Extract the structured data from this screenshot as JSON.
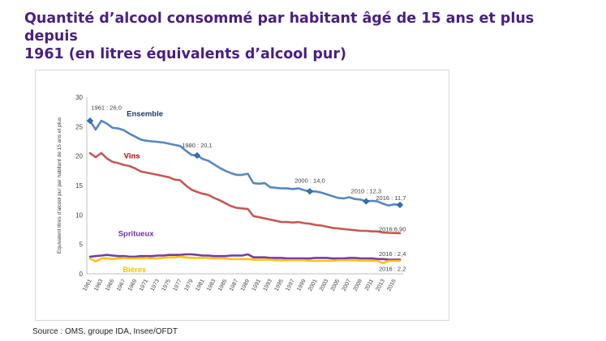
{
  "header": {
    "title_line1": "Quantité d’alcool consommé par habitant âgé de 15 ans et plus depuis",
    "title_line2": "1961 (en litres équivalents d’alcool pur)"
  },
  "footer": {
    "source": "Source : OMS, groupe IDA, Insee/OFDT"
  },
  "chart_data": {
    "type": "line",
    "title": "Quantité d’alcool consommé par habitant âgé de 15 ans et plus depuis 1961 (en litres équivalents d’alcool pur)",
    "ylabel": "Equivalent litres d'alcool pur par habitant de 15 ans et plus",
    "xlabel": "",
    "ylim": [
      0,
      30
    ],
    "yticks": [
      0,
      5,
      10,
      15,
      20,
      25,
      30
    ],
    "x": [
      1961,
      1962,
      1963,
      1964,
      1965,
      1966,
      1967,
      1968,
      1969,
      1970,
      1971,
      1972,
      1973,
      1974,
      1975,
      1976,
      1977,
      1978,
      1979,
      1980,
      1981,
      1982,
      1983,
      1984,
      1985,
      1986,
      1987,
      1988,
      1989,
      1990,
      1991,
      1992,
      1993,
      1994,
      1995,
      1996,
      1997,
      1998,
      1999,
      2000,
      2001,
      2002,
      2003,
      2004,
      2005,
      2006,
      2007,
      2008,
      2009,
      2010,
      2011,
      2012,
      2013,
      2014,
      2015,
      2016
    ],
    "xtick_labels": [
      "1961",
      "1963",
      "1965",
      "1967",
      "1969",
      "1971",
      "1973",
      "1975",
      "1977",
      "1979",
      "1981",
      "1983",
      "1985",
      "1987",
      "1989",
      "1991",
      "1993",
      "1995",
      "1997",
      "1999",
      "2001",
      "2003",
      "2005",
      "2007",
      "2009",
      "2011",
      "2013",
      "2015"
    ],
    "grid": false,
    "series": [
      {
        "name": "Ensemble",
        "color": "#4f81bd",
        "values": [
          26.0,
          24.5,
          26.0,
          25.5,
          24.8,
          24.7,
          24.4,
          23.8,
          23.3,
          22.8,
          22.6,
          22.5,
          22.4,
          22.3,
          22.1,
          21.9,
          21.7,
          20.9,
          20.2,
          20.1,
          19.5,
          19.2,
          18.6,
          18.0,
          17.5,
          17.1,
          16.8,
          16.8,
          17.0,
          15.4,
          15.3,
          15.4,
          14.7,
          14.6,
          14.5,
          14.5,
          14.4,
          14.5,
          14.2,
          14.0,
          14.0,
          13.8,
          13.5,
          13.2,
          12.9,
          12.8,
          13.0,
          12.7,
          12.6,
          12.3,
          12.4,
          12.3,
          11.9,
          11.6,
          11.8,
          11.7
        ]
      },
      {
        "name": "Vins",
        "color": "#c0504d",
        "values": [
          20.5,
          19.8,
          20.5,
          19.6,
          19.0,
          18.8,
          18.5,
          18.3,
          17.9,
          17.4,
          17.2,
          17.0,
          16.8,
          16.6,
          16.4,
          16.0,
          15.9,
          15.0,
          14.3,
          13.9,
          13.6,
          13.4,
          12.9,
          12.5,
          12.0,
          11.5,
          11.2,
          11.1,
          11.0,
          9.8,
          9.6,
          9.4,
          9.2,
          9.0,
          8.8,
          8.8,
          8.7,
          8.8,
          8.6,
          8.5,
          8.3,
          8.2,
          8.0,
          7.8,
          7.7,
          7.6,
          7.5,
          7.4,
          7.3,
          7.3,
          7.2,
          7.2,
          7.0,
          6.95,
          6.92,
          6.9
        ]
      },
      {
        "name": "Spritueux",
        "color": "#7030a0",
        "values": [
          2.9,
          3.0,
          3.1,
          3.2,
          3.1,
          3.0,
          3.0,
          2.9,
          2.9,
          3.0,
          3.0,
          3.0,
          3.1,
          3.1,
          3.2,
          3.2,
          3.2,
          3.3,
          3.3,
          3.2,
          3.1,
          3.1,
          3.0,
          3.0,
          3.0,
          3.1,
          3.1,
          3.1,
          3.3,
          2.8,
          2.8,
          2.8,
          2.7,
          2.7,
          2.7,
          2.6,
          2.6,
          2.6,
          2.6,
          2.6,
          2.7,
          2.7,
          2.7,
          2.6,
          2.6,
          2.6,
          2.7,
          2.7,
          2.6,
          2.6,
          2.6,
          2.5,
          2.5,
          2.4,
          2.4,
          2.4
        ]
      },
      {
        "name": "Bières",
        "color": "#ffc000",
        "values": [
          2.6,
          2.1,
          2.6,
          2.6,
          2.5,
          2.6,
          2.7,
          2.6,
          2.6,
          2.6,
          2.7,
          2.6,
          2.6,
          2.7,
          2.8,
          2.8,
          2.9,
          2.8,
          2.7,
          2.7,
          2.7,
          2.7,
          2.6,
          2.6,
          2.6,
          2.5,
          2.5,
          2.5,
          2.5,
          2.4,
          2.4,
          2.4,
          2.4,
          2.3,
          2.3,
          2.3,
          2.3,
          2.3,
          2.3,
          2.2,
          2.2,
          2.2,
          2.2,
          2.2,
          2.3,
          2.3,
          2.3,
          2.3,
          2.2,
          2.2,
          2.2,
          2.2,
          1.8,
          2.2,
          2.2,
          2.2
        ]
      }
    ],
    "series_labels": [
      {
        "series": "Ensemble",
        "text": "Ensemble",
        "color": "#1f3864"
      },
      {
        "series": "Vins",
        "text": "Vins",
        "color": "#c00000"
      },
      {
        "series": "Spritueux",
        "text": "Spritueux",
        "color": "#7030a0"
      },
      {
        "series": "Bières",
        "text": "Bières",
        "color": "#ffc000"
      }
    ],
    "annotations": [
      {
        "text": "1961 : 26,0",
        "x": 1961,
        "y": 26.0,
        "marker": true
      },
      {
        "text": "1980 : 20,1",
        "x": 1980,
        "y": 20.1,
        "marker": true
      },
      {
        "text": "2000 : 14,0",
        "x": 2000,
        "y": 14.0,
        "marker": true
      },
      {
        "text": "2010 : 12,3",
        "x": 2010,
        "y": 12.3,
        "marker": true
      },
      {
        "text": "2016 : 11,7",
        "x": 2016,
        "y": 11.7,
        "marker": true
      },
      {
        "text": "2016:6,90",
        "x": 2016,
        "y": 6.9,
        "marker": false
      },
      {
        "text": "2016 : 2,4",
        "x": 2016,
        "y": 2.4,
        "marker": false
      },
      {
        "text": "2016 : 2,2",
        "x": 2016,
        "y": 2.2,
        "marker": false
      }
    ]
  }
}
